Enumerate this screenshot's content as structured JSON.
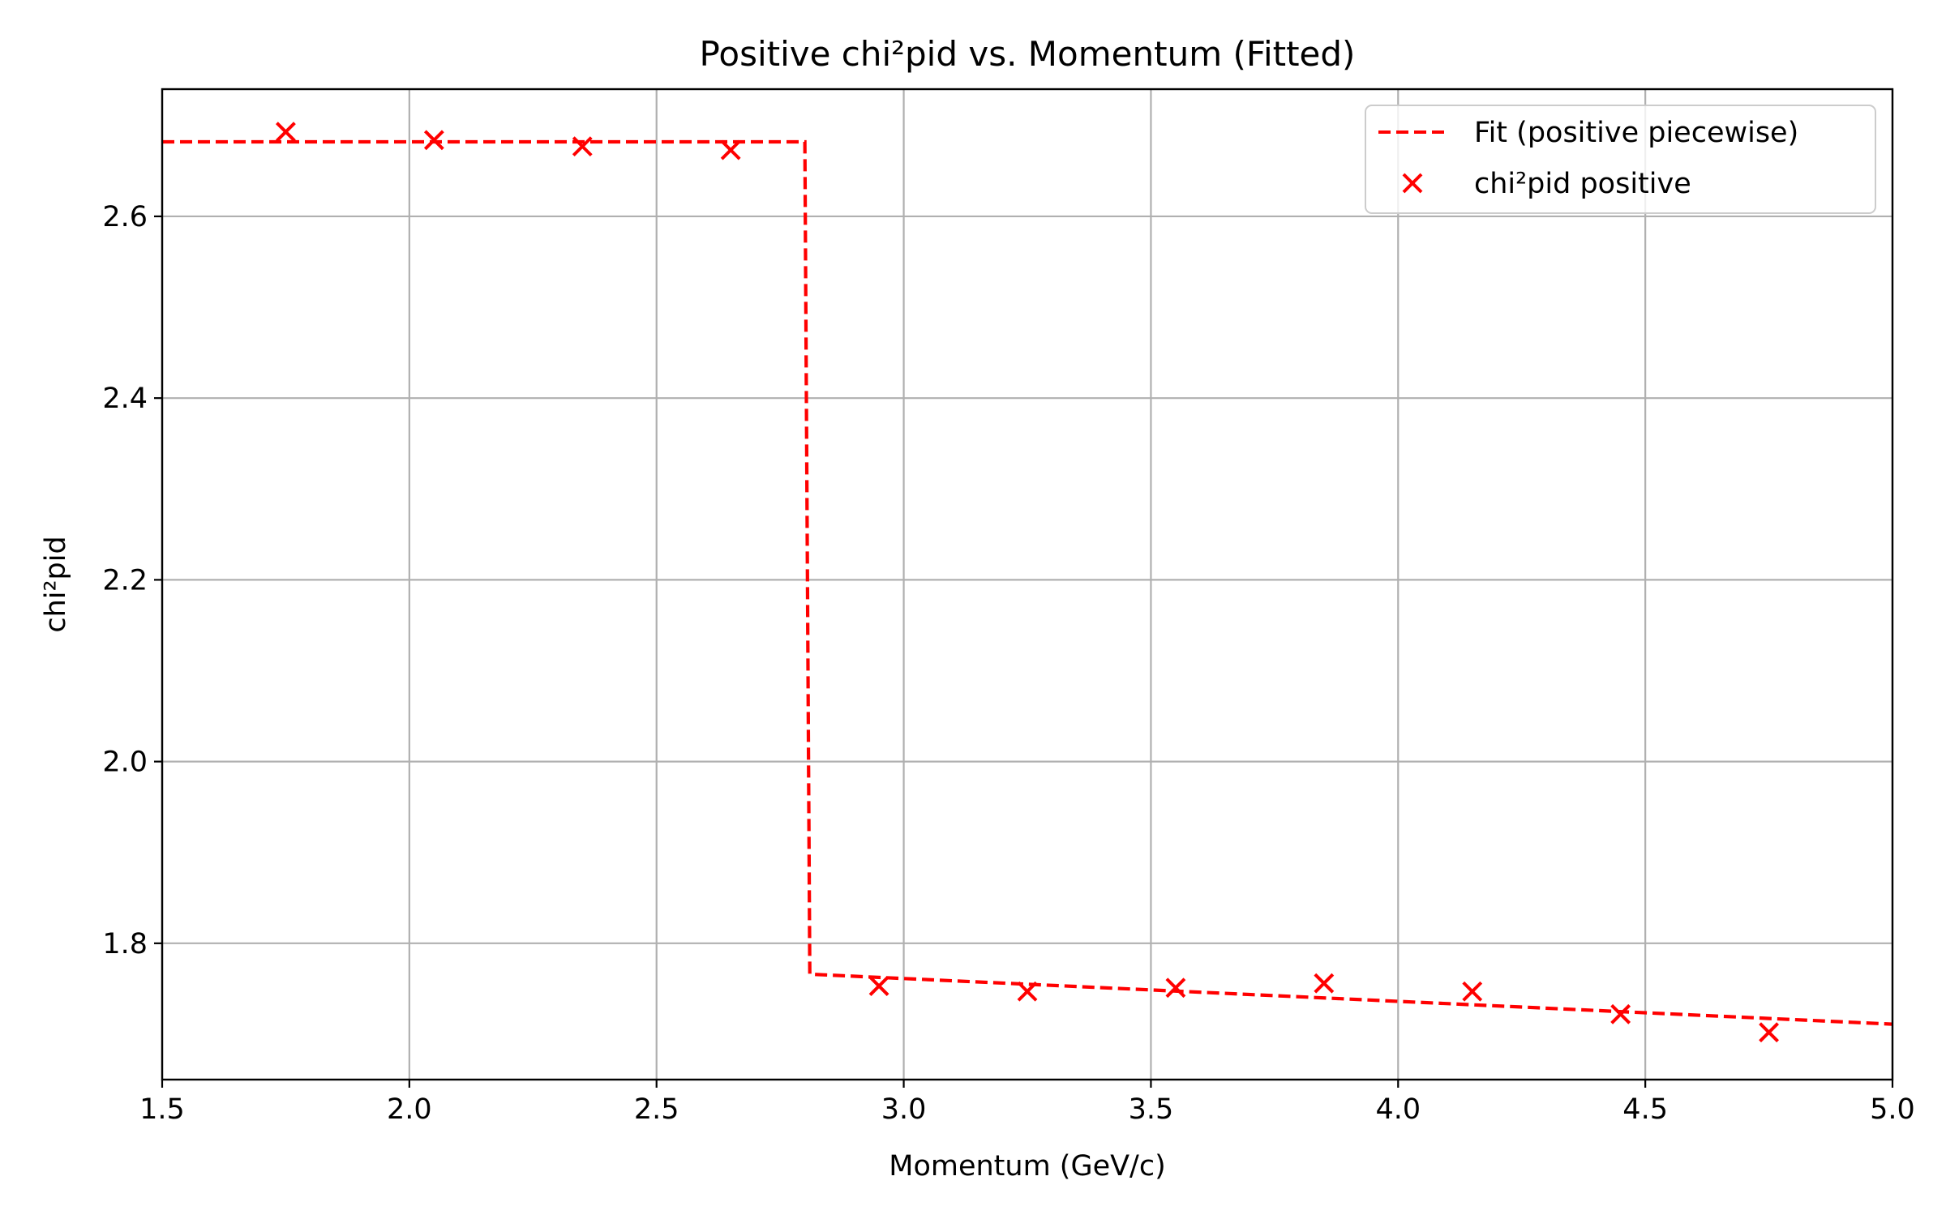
{
  "chart_data": {
    "type": "scatter",
    "title": "Positive chi²pid vs. Momentum (Fitted)",
    "xlabel": "Momentum (GeV/c)",
    "ylabel": "chi²pid",
    "xlim": [
      1.5,
      5.0
    ],
    "ylim": [
      1.65,
      2.74
    ],
    "xticks": [
      1.5,
      2.0,
      2.5,
      3.0,
      3.5,
      4.0,
      4.5,
      5.0
    ],
    "xtick_labels": [
      "1.5",
      "2.0",
      "2.5",
      "3.0",
      "3.5",
      "4.0",
      "4.5",
      "5.0"
    ],
    "yticks": [
      1.8,
      2.0,
      2.2,
      2.4,
      2.6
    ],
    "ytick_labels": [
      "1.8",
      "2.0",
      "2.2",
      "2.4",
      "2.6"
    ],
    "grid": true,
    "legend_position": "top-right",
    "series": [
      {
        "name": "Fit (positive piecewise)",
        "kind": "line",
        "style": "dashed",
        "color": "#ff0000",
        "x": [
          1.5,
          2.8,
          2.8,
          2.81,
          5.0
        ],
        "y": [
          2.682,
          2.682,
          2.682,
          1.766,
          1.711
        ]
      },
      {
        "name": "chi²pid positive",
        "kind": "scatter",
        "marker": "x",
        "color": "#ff0000",
        "x": [
          1.75,
          2.05,
          2.35,
          2.65,
          2.95,
          3.25,
          3.55,
          3.85,
          4.15,
          4.45,
          4.75
        ],
        "y": [
          2.693,
          2.684,
          2.677,
          2.673,
          1.753,
          1.747,
          1.751,
          1.756,
          1.747,
          1.722,
          1.702
        ]
      }
    ]
  }
}
